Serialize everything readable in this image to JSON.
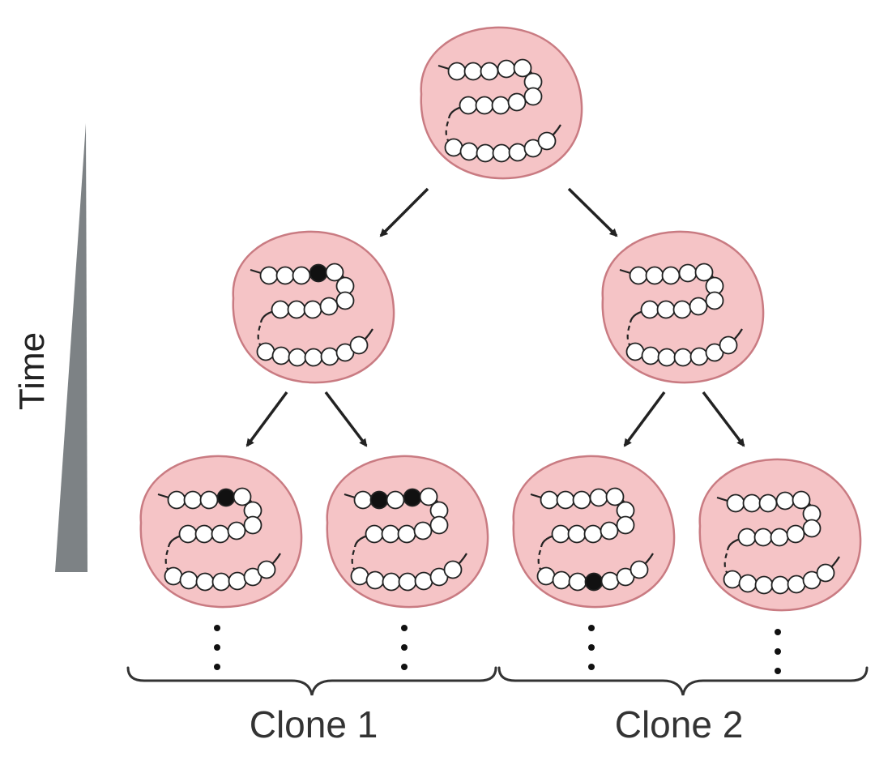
{
  "axis": {
    "label": "Time"
  },
  "clones": [
    {
      "label": "Clone 1"
    },
    {
      "label": "Clone 2"
    }
  ],
  "colors": {
    "cell_fill": "#f5c4c6",
    "cell_stroke": "#c97b82",
    "bead_fill": "#ffffff",
    "mutation_fill": "#111111",
    "wedge": "#7d8285",
    "arrow": "#222222"
  },
  "cells": [
    {
      "id": "root",
      "generation": 0,
      "mutations": []
    },
    {
      "id": "gen1-left",
      "generation": 1,
      "mutations": [
        "top-row-4"
      ]
    },
    {
      "id": "gen1-right",
      "generation": 1,
      "mutations": []
    },
    {
      "id": "gen2-clone1-a",
      "generation": 2,
      "clone": "Clone 1",
      "mutations": [
        "top-row-4"
      ]
    },
    {
      "id": "gen2-clone1-b",
      "generation": 2,
      "clone": "Clone 1",
      "mutations": [
        "top-row-2",
        "top-row-4"
      ]
    },
    {
      "id": "gen2-clone2-a",
      "generation": 2,
      "clone": "Clone 2",
      "mutations": [
        "bottom-row-4"
      ]
    },
    {
      "id": "gen2-clone2-b",
      "generation": 2,
      "clone": "Clone 2",
      "mutations": []
    }
  ]
}
